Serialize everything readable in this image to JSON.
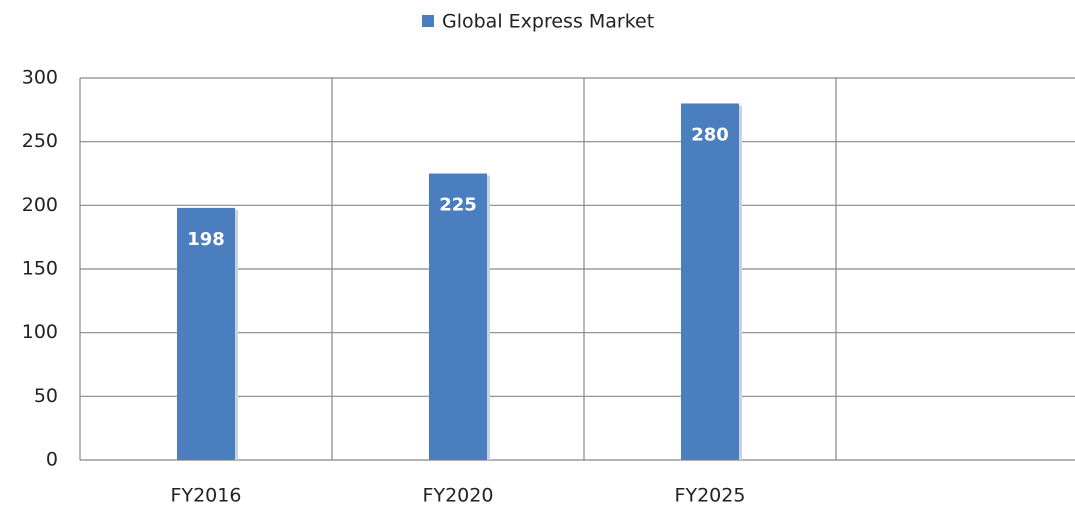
{
  "chart_data": {
    "type": "bar",
    "categories": [
      "FY2016",
      "FY2020",
      "FY2025",
      null
    ],
    "series": [
      {
        "name": "Global Express Market",
        "color": "#4a7ebf",
        "values": [
          198,
          225,
          280,
          null
        ]
      }
    ],
    "ylim": [
      0,
      300
    ],
    "yticks": [
      0,
      50,
      100,
      150,
      200,
      250,
      300
    ],
    "grid": true,
    "legend": "top"
  }
}
